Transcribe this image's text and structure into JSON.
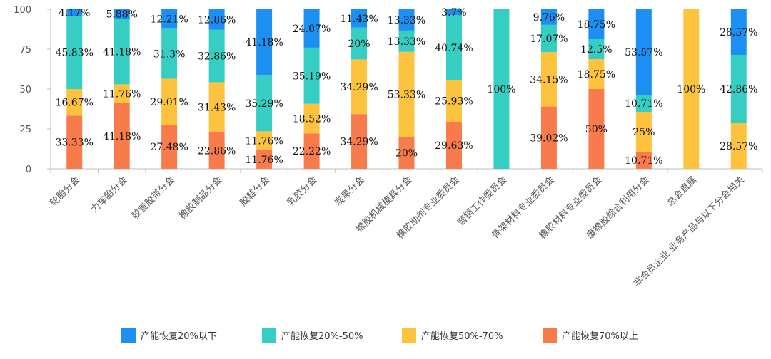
{
  "chart_data": {
    "type": "bar",
    "stacked": true,
    "ylim": [
      0,
      100
    ],
    "yticks": [
      0,
      25,
      50,
      75,
      100
    ],
    "grid": false,
    "legend_position": "bottom",
    "categories": [
      "轮胎分会",
      "力车胎分会",
      "胶管胶带分会",
      "橡胶制品分会",
      "胶鞋分会",
      "乳胶分会",
      "炭黑分会",
      "橡胶机械模具分会",
      "橡胶助剂专业委员会",
      "营销工作委员会",
      "骨架材料专业委员会",
      "橡胶材料专业委员会",
      "废橡胶综合利用分会",
      "总会直属",
      "非会员企业 业务产品与以下分会相关"
    ],
    "series": [
      {
        "name": "产能恢复70%以上",
        "color": "#F87B4B",
        "values": [
          33.33,
          41.18,
          27.48,
          22.86,
          11.76,
          22.22,
          34.29,
          20,
          29.63,
          0,
          39.02,
          50,
          10.71,
          0,
          0
        ],
        "labels": [
          "33.33%",
          "41.18%",
          "27.48%",
          "22.86%",
          "11.76%",
          "22.22%",
          "34.29%",
          "20%",
          "29.63%",
          "",
          "39.02%",
          "50%",
          "10.71%",
          "",
          ""
        ]
      },
      {
        "name": "产能恢复50%-70%",
        "color": "#FDC23E",
        "values": [
          16.67,
          11.76,
          29.01,
          31.43,
          11.76,
          18.52,
          34.29,
          53.33,
          25.93,
          0,
          34.15,
          18.75,
          25,
          100,
          28.57
        ],
        "labels": [
          "16.67%",
          "11.76%",
          "29.01%",
          "31.43%",
          "11.76%",
          "18.52%",
          "34.29%",
          "53.33%",
          "25.93%",
          "",
          "34.15%",
          "18.75%",
          "25%",
          "100%",
          "28.57%"
        ]
      },
      {
        "name": "产能恢复20%-50%",
        "color": "#36CEC3",
        "values": [
          45.83,
          41.18,
          31.3,
          32.86,
          35.29,
          35.19,
          20,
          13.33,
          40.74,
          100,
          17.07,
          12.5,
          10.71,
          0,
          42.86
        ],
        "labels": [
          "45.83%",
          "41.18%",
          "31.3%",
          "32.86%",
          "35.29%",
          "35.19%",
          "20%",
          "13.33%",
          "40.74%",
          "100%",
          "17.07%",
          "12.5%",
          "10.71%",
          "",
          "42.86%"
        ]
      },
      {
        "name": "产能恢复20%以下",
        "color": "#1C8FF2",
        "values": [
          4.17,
          5.88,
          12.21,
          12.86,
          41.18,
          24.07,
          11.43,
          13.33,
          3.7,
          0,
          9.76,
          18.75,
          53.57,
          0,
          28.57
        ],
        "labels": [
          "4.17%",
          "5.88%",
          "12.21%",
          "12.86%",
          "41.18%",
          "24.07%",
          "11.43%",
          "13.33%",
          "3.7%",
          "",
          "9.76%",
          "18.75%",
          "53.57%",
          "",
          "28.57%"
        ]
      }
    ],
    "legend_order": [
      "产能恢复20%以下",
      "产能恢复20%-50%",
      "产能恢复50%-70%",
      "产能恢复70%以上"
    ]
  }
}
